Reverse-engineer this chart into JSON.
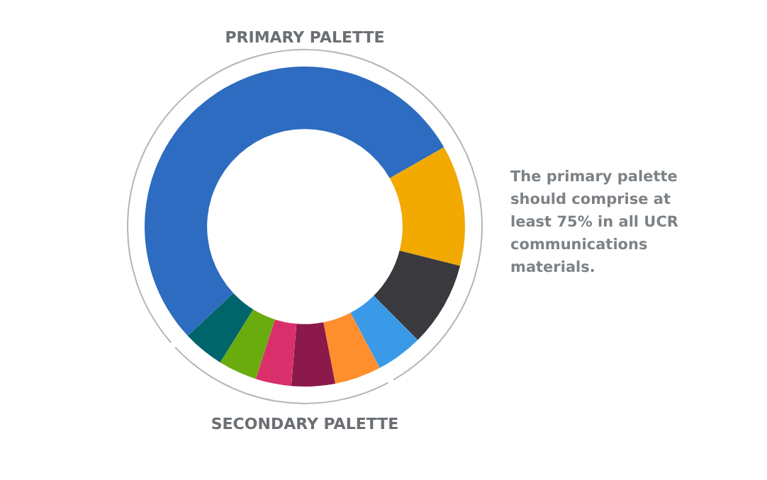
{
  "chart_data": {
    "type": "donut",
    "title": "PRIMARY PALETTE",
    "categories": [
      null,
      null,
      null,
      null,
      null,
      null,
      null,
      null,
      null
    ],
    "values": [
      53.7,
      12.2,
      8.6,
      4.7,
      4.7,
      4.4,
      3.6,
      3.9,
      4.2
    ],
    "colors": [
      "#2d6cc0",
      "#f2a900",
      "#3a3a3e",
      "#3a9ae8",
      "#ff8f2c",
      "#8b1a4b",
      "#d9306c",
      "#6aab0e",
      "#00656a"
    ],
    "annotations": [
      "SECONDARY PALETTE",
      "The primary palette should comprise at least 75% in all UCR communications materials."
    ],
    "legend": false
  }
}
